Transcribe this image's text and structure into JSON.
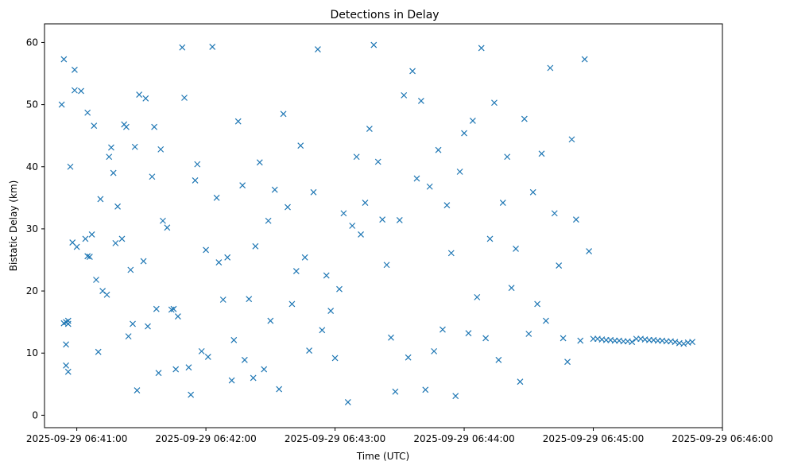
{
  "chart_data": {
    "type": "scatter",
    "title": "Detections in Delay",
    "xlabel": "Time (UTC)",
    "ylabel": "Bistatic Delay (km)",
    "x_axis_type": "datetime",
    "xlim": [
      "2025-09-29 06:40:45",
      "2025-09-29 06:46:00"
    ],
    "ylim": [
      -2,
      63
    ],
    "x_ticks": [
      "2025-09-29 06:41:00",
      "2025-09-29 06:42:00",
      "2025-09-29 06:43:00",
      "2025-09-29 06:44:00",
      "2025-09-29 06:45:00",
      "2025-09-29 06:46:00"
    ],
    "y_ticks": [
      0,
      10,
      20,
      30,
      40,
      50,
      60
    ],
    "grid": false,
    "legend": "none",
    "marker": "x",
    "color": "#1f77b4",
    "series": [
      {
        "x": [
          "06:40:53",
          "06:40:54",
          "06:40:54",
          "06:40:55",
          "06:40:55",
          "06:40:55",
          "06:40:56",
          "06:40:56",
          "06:40:56",
          "06:40:57",
          "06:40:58",
          "06:40:59",
          "06:40:59",
          "06:41:00",
          "06:41:02",
          "06:41:04",
          "06:41:05",
          "06:41:05",
          "06:41:06",
          "06:41:07",
          "06:41:08",
          "06:41:09",
          "06:41:10",
          "06:41:11",
          "06:41:12",
          "06:41:14",
          "06:41:15",
          "06:41:16",
          "06:41:17",
          "06:41:18",
          "06:41:19",
          "06:41:21",
          "06:41:22",
          "06:41:23",
          "06:41:24",
          "06:41:25",
          "06:41:26",
          "06:41:27",
          "06:41:28",
          "06:41:29",
          "06:41:31",
          "06:41:32",
          "06:41:33",
          "06:41:35",
          "06:41:36",
          "06:41:37",
          "06:41:38",
          "06:41:39",
          "06:41:40",
          "06:41:42",
          "06:41:44",
          "06:41:45",
          "06:41:46",
          "06:41:47",
          "06:41:49",
          "06:41:50",
          "06:41:52",
          "06:41:53",
          "06:41:55",
          "06:41:56",
          "06:41:58",
          "06:42:00",
          "06:42:01",
          "06:42:03",
          "06:42:05",
          "06:42:06",
          "06:42:08",
          "06:42:10",
          "06:42:12",
          "06:42:13",
          "06:42:15",
          "06:42:17",
          "06:42:18",
          "06:42:20",
          "06:42:22",
          "06:42:23",
          "06:42:25",
          "06:42:27",
          "06:42:29",
          "06:42:30",
          "06:42:32",
          "06:42:34",
          "06:42:36",
          "06:42:38",
          "06:42:40",
          "06:42:42",
          "06:42:44",
          "06:42:46",
          "06:42:48",
          "06:42:50",
          "06:42:52",
          "06:42:54",
          "06:42:56",
          "06:42:58",
          "06:43:00",
          "06:43:02",
          "06:43:04",
          "06:43:06",
          "06:43:08",
          "06:43:10",
          "06:43:12",
          "06:43:14",
          "06:43:16",
          "06:43:18",
          "06:43:20",
          "06:43:22",
          "06:43:24",
          "06:43:26",
          "06:43:28",
          "06:43:30",
          "06:43:32",
          "06:43:34",
          "06:43:36",
          "06:43:38",
          "06:43:40",
          "06:43:42",
          "06:43:44",
          "06:43:46",
          "06:43:48",
          "06:43:50",
          "06:43:52",
          "06:43:54",
          "06:43:56",
          "06:43:58",
          "06:44:00",
          "06:44:02",
          "06:44:04",
          "06:44:06",
          "06:44:08",
          "06:44:10",
          "06:44:12",
          "06:44:14",
          "06:44:16",
          "06:44:18",
          "06:44:20",
          "06:44:22",
          "06:44:24",
          "06:44:26",
          "06:44:28",
          "06:44:30",
          "06:44:32",
          "06:44:34",
          "06:44:36",
          "06:44:38",
          "06:44:40",
          "06:44:42",
          "06:44:44",
          "06:44:46",
          "06:44:48",
          "06:44:50",
          "06:44:52",
          "06:44:54",
          "06:44:56",
          "06:44:58",
          "06:45:00",
          "06:45:02",
          "06:45:04",
          "06:45:06",
          "06:45:08",
          "06:45:10",
          "06:45:12",
          "06:45:14",
          "06:45:16",
          "06:45:18",
          "06:45:20",
          "06:45:22",
          "06:45:24",
          "06:45:26",
          "06:45:28",
          "06:45:30",
          "06:45:32",
          "06:45:34",
          "06:45:36",
          "06:45:38",
          "06:45:40",
          "06:45:42",
          "06:45:44",
          "06:45:46"
        ],
        "y": [
          50,
          57.3,
          14.8,
          15,
          8,
          11.4,
          7,
          15.2,
          14.7,
          40,
          27.8,
          52.3,
          55.6,
          27.1,
          52.2,
          28.4,
          48.7,
          25.6,
          25.5,
          29.1,
          46.6,
          21.8,
          10.2,
          34.8,
          20,
          19.4,
          41.6,
          43.1,
          39,
          27.7,
          33.6,
          28.4,
          46.8,
          46.4,
          12.7,
          23.4,
          14.7,
          43.2,
          4,
          51.6,
          24.8,
          51,
          14.3,
          38.4,
          46.4,
          17.1,
          6.8,
          42.8,
          31.3,
          30.2,
          17,
          17.1,
          7.4,
          15.9,
          59.2,
          51.1,
          7.7,
          3.3,
          37.8,
          40.4,
          10.3,
          26.6,
          9.4,
          59.3,
          35,
          24.6,
          18.6,
          25.4,
          5.6,
          12.1,
          47.3,
          37,
          8.9,
          18.7,
          6,
          27.2,
          40.7,
          7.4,
          31.3,
          15.2,
          36.3,
          4.2,
          48.5,
          33.5,
          17.9,
          23.2,
          43.4,
          25.4,
          10.4,
          35.9,
          58.9,
          13.7,
          22.5,
          16.8,
          9.2,
          20.3,
          32.5,
          2.1,
          30.5,
          41.6,
          29.1,
          34.2,
          46.1,
          59.6,
          40.8,
          31.5,
          24.2,
          12.5,
          3.8,
          31.4,
          51.5,
          9.3,
          55.4,
          38.1,
          50.6,
          4.1,
          36.8,
          10.3,
          42.7,
          13.8,
          33.8,
          26.1,
          3.1,
          39.2,
          45.4,
          13.2,
          47.4,
          19,
          59.1,
          12.4,
          28.4,
          50.3,
          8.9,
          34.2,
          41.6,
          20.5,
          26.8,
          5.4,
          47.7,
          13.1,
          35.9,
          17.9,
          42.1,
          15.2,
          55.9,
          32.5,
          24.1,
          12.4,
          8.6,
          44.4,
          31.5,
          12,
          57.3,
          26.4,
          12.3,
          12.3,
          12.2,
          12.1,
          12.1,
          12.0,
          12.0,
          11.9,
          11.9,
          11.8,
          12.3,
          12.3,
          12.2,
          12.1,
          12.1,
          12.0,
          12.0,
          11.9,
          11.9,
          11.8,
          11.6,
          11.5,
          11.7,
          11.8
        ]
      }
    ]
  }
}
